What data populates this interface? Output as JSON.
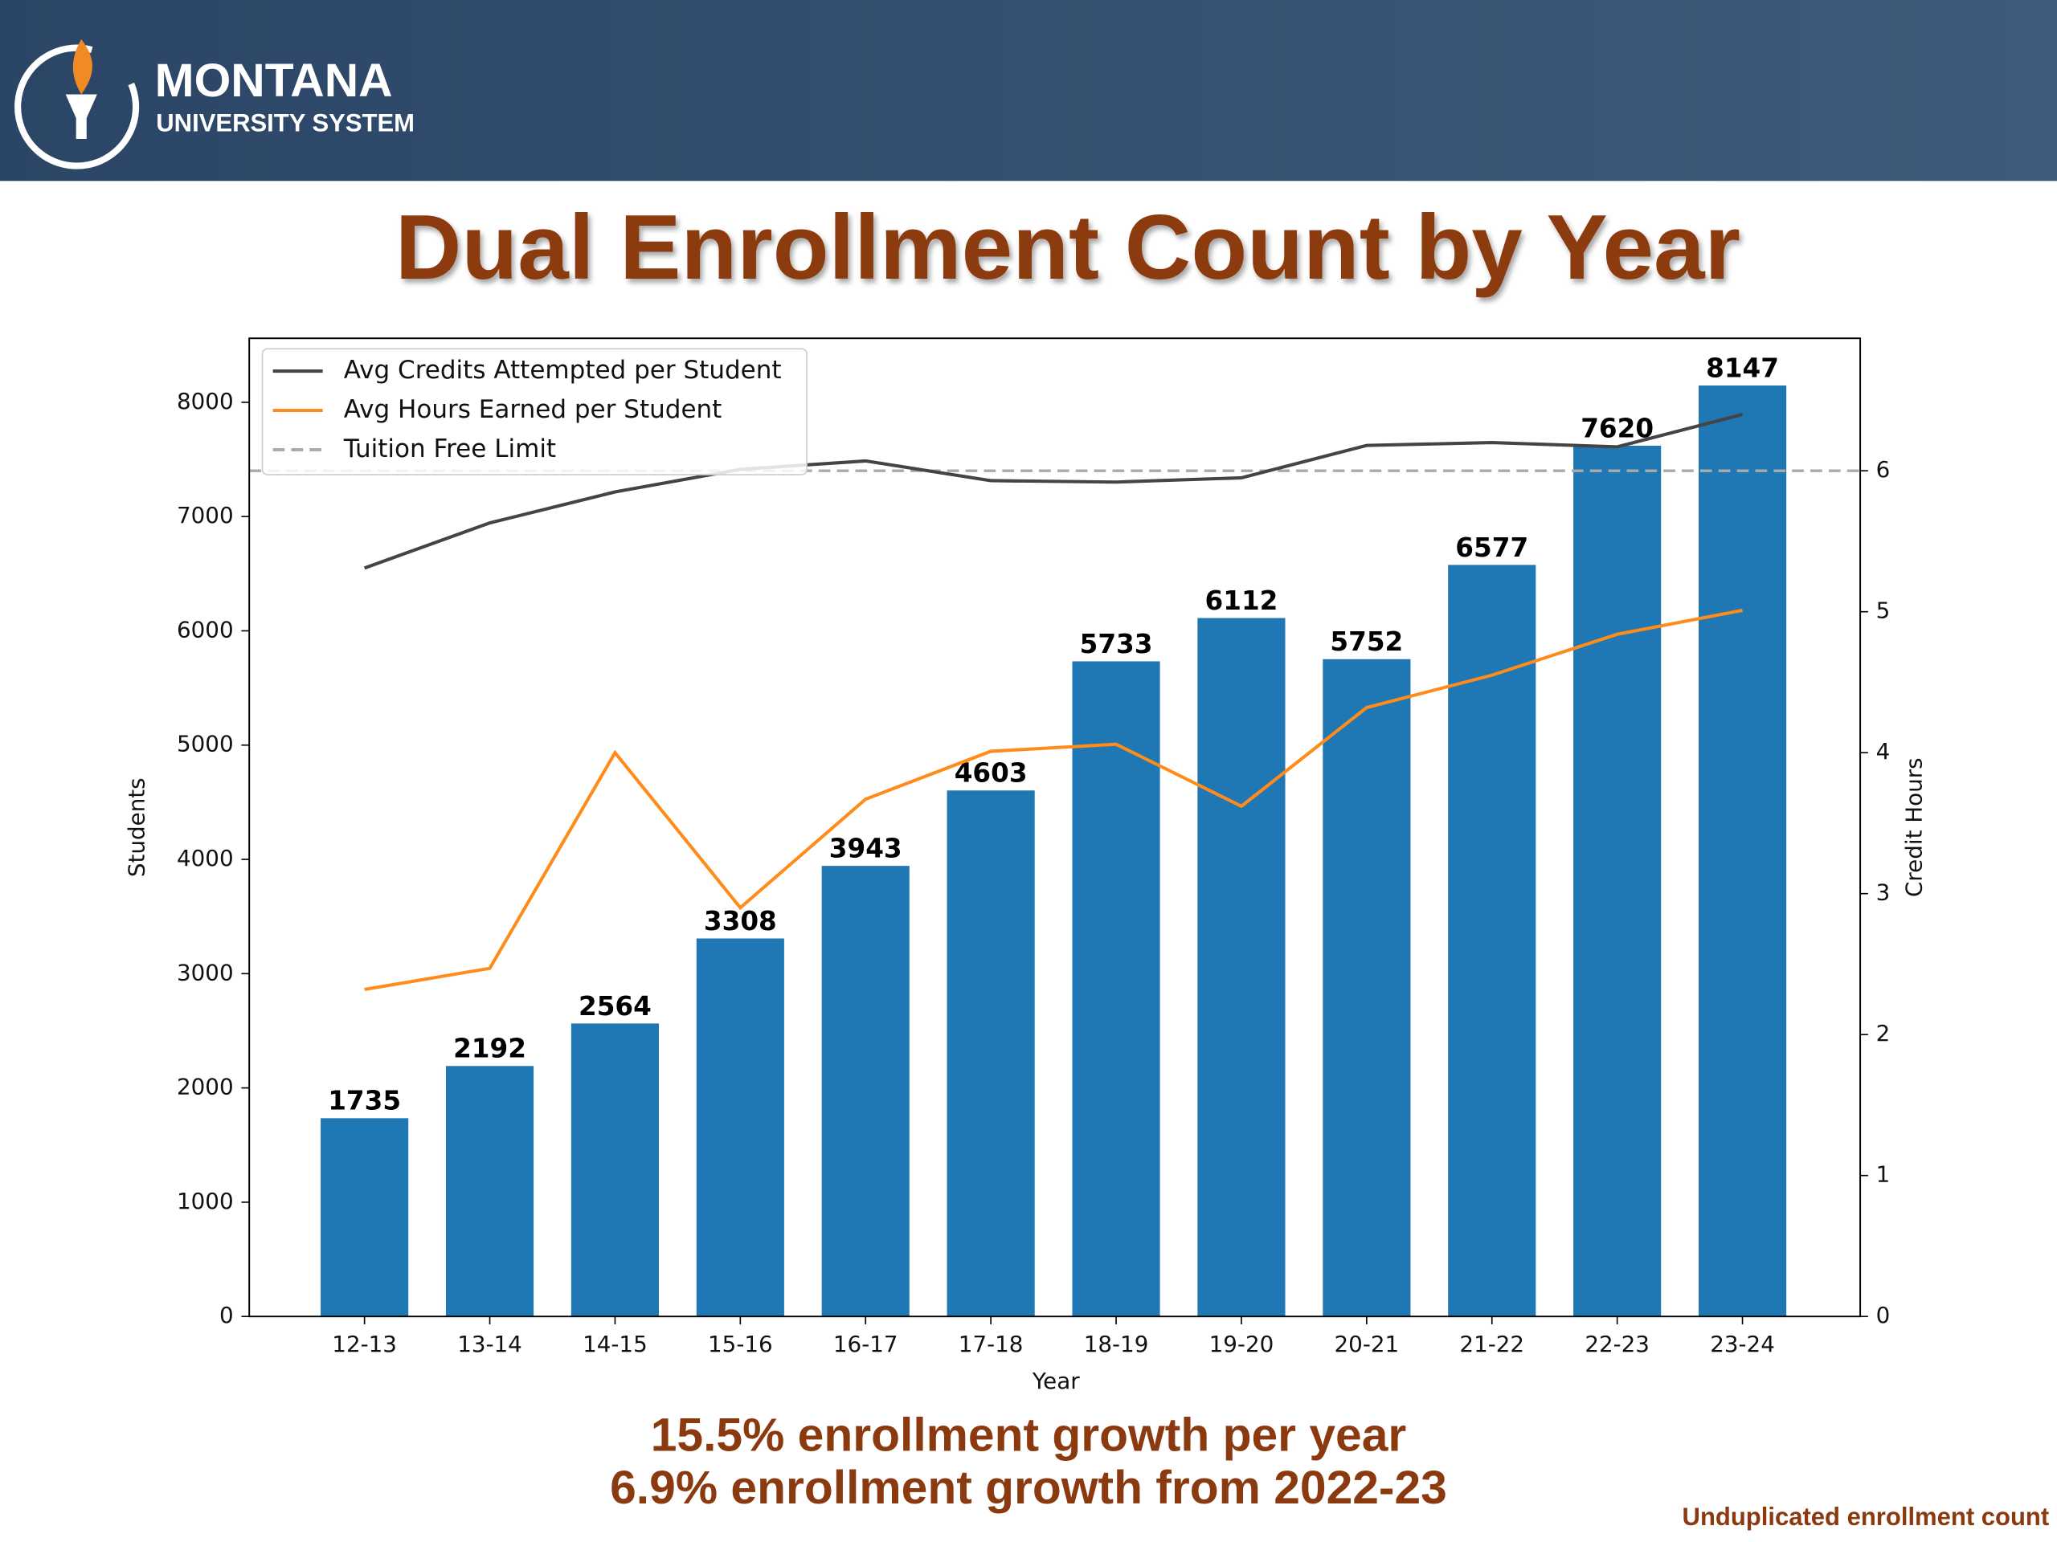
{
  "header": {
    "brand": "MONTANA",
    "subtitle": "UNIVERSITY SYSTEM"
  },
  "chart_data": {
    "type": "bar",
    "title": "Dual Enrollment Count by Year",
    "x_label": "Year",
    "y_label": "Students",
    "y2_label": "Credit Hours",
    "categories": [
      "12-13",
      "13-14",
      "14-15",
      "15-16",
      "16-17",
      "17-18",
      "18-19",
      "19-20",
      "20-21",
      "21-22",
      "22-23",
      "23-24"
    ],
    "series": [
      {
        "name": "Students",
        "type": "bar",
        "color": "#1f77b4",
        "values": [
          1735,
          2192,
          2564,
          3308,
          3943,
          4603,
          5733,
          6112,
          5752,
          6577,
          7620,
          8147
        ]
      },
      {
        "name": "Avg Credits Attempted per Student",
        "type": "line",
        "axis": "y2",
        "color": "#444444",
        "values": [
          5.31,
          5.63,
          5.85,
          6.01,
          6.07,
          5.93,
          5.92,
          5.95,
          6.18,
          6.2,
          6.17,
          6.4
        ]
      },
      {
        "name": "Avg Hours Earned per Student",
        "type": "line",
        "axis": "y2",
        "color": "#ff8c1a",
        "values": [
          2.32,
          2.47,
          4.0,
          2.9,
          3.67,
          4.01,
          4.06,
          3.62,
          4.32,
          4.55,
          4.84,
          5.01
        ]
      }
    ],
    "reference_line": {
      "name": "Tuition Free Limit",
      "value": 6,
      "axis": "y2",
      "color": "#aaaaaa",
      "dashed": true
    },
    "ylim": [
      0,
      8560
    ],
    "yticks": [
      0,
      1000,
      2000,
      3000,
      4000,
      5000,
      6000,
      7000,
      8000
    ],
    "y2lim": [
      0,
      6.94
    ],
    "y2ticks": [
      0,
      1,
      2,
      3,
      4,
      5,
      6
    ],
    "legend": "upper left",
    "annotations": [
      "15.5% enrollment growth per year",
      "6.9% enrollment growth from 2022-23"
    ],
    "footnote": "Unduplicated enrollment count"
  }
}
